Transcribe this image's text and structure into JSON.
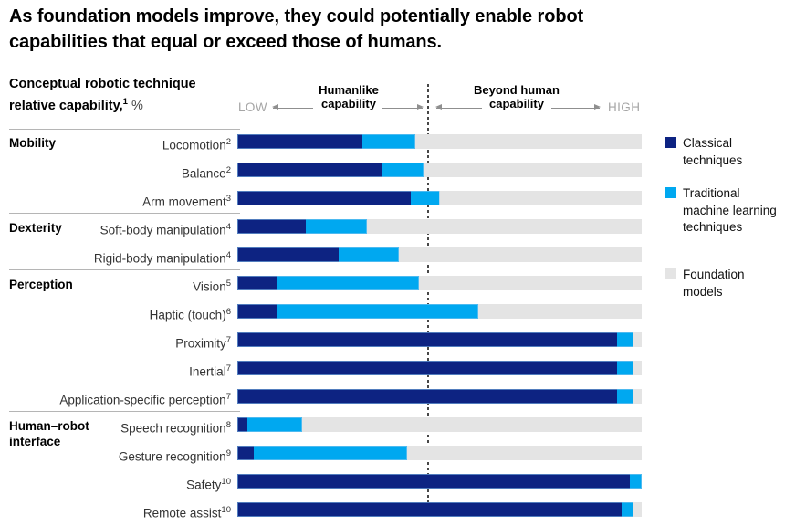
{
  "title": "As foundation models improve, they could potentially enable robot capabilities that equal or exceed those of humans.",
  "axis": {
    "unit_label": "Conceptual robotic technique relative capability,",
    "unit_sup": "1",
    "unit_suffix": " %",
    "low": "LOW",
    "high": "HIGH",
    "left_zone": "Humanlike capability",
    "right_zone": "Beyond human capability"
  },
  "legend": [
    {
      "name": "Classical techniques",
      "color": "#0d2382"
    },
    {
      "name": "Traditional machine learning techniques",
      "color": "#00a8f0"
    },
    {
      "name": "Foundation models",
      "color": "#e4e4e4"
    }
  ],
  "chart_data": {
    "type": "bar",
    "orientation": "horizontal",
    "stacked": true,
    "unit": "%",
    "xlim": [
      0,
      100
    ],
    "threshold_note": "Dashed vertical line at ~47% separates Humanlike capability (left) from Beyond human capability (right)",
    "series_names": [
      "Classical techniques",
      "Traditional machine learning techniques",
      "Foundation models"
    ],
    "groups": [
      {
        "name": "Mobility",
        "rows": [
          {
            "label": "Locomotion",
            "sup": "2",
            "values": [
              31,
              13,
              56
            ]
          },
          {
            "label": "Balance",
            "sup": "2",
            "values": [
              36,
              10,
              54
            ]
          },
          {
            "label": "Arm movement",
            "sup": "3",
            "values": [
              43,
              7,
              50
            ]
          }
        ]
      },
      {
        "name": "Dexterity",
        "rows": [
          {
            "label": "Soft-body manipulation",
            "sup": "4",
            "values": [
              17,
              15,
              68
            ]
          },
          {
            "label": "Rigid-body manipulation",
            "sup": "4",
            "values": [
              25,
              15,
              60
            ]
          }
        ]
      },
      {
        "name": "Perception",
        "rows": [
          {
            "label": "Vision",
            "sup": "5",
            "values": [
              10,
              35,
              55
            ]
          },
          {
            "label": "Haptic (touch)",
            "sup": "6",
            "values": [
              10,
              49.5,
              40.5
            ]
          },
          {
            "label": "Proximity",
            "sup": "7",
            "values": [
              94,
              4,
              2
            ]
          },
          {
            "label": "Inertial",
            "sup": "7",
            "values": [
              94,
              4,
              2
            ]
          },
          {
            "label": "Application-specific perception",
            "sup": "7",
            "values": [
              94,
              4,
              2
            ]
          }
        ]
      },
      {
        "name": "Human–robot interface",
        "rows": [
          {
            "label": "Speech recognition",
            "sup": "8",
            "values": [
              2.5,
              13.5,
              84
            ]
          },
          {
            "label": "Gesture recognition",
            "sup": "9",
            "values": [
              4,
              38,
              58
            ]
          },
          {
            "label": "Safety",
            "sup": "10",
            "values": [
              97,
              3,
              0
            ]
          },
          {
            "label": "Remote assist",
            "sup": "10",
            "values": [
              95,
              3,
              2
            ]
          }
        ]
      }
    ]
  }
}
